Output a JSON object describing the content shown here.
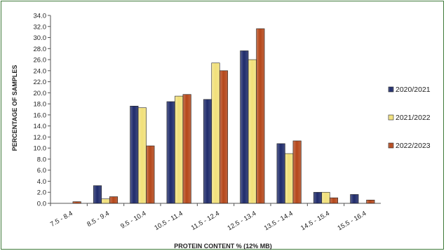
{
  "chart_data": {
    "type": "bar",
    "title": "",
    "xlabel": "PROTEIN CONTENT % (12% MB)",
    "ylabel": "PERCENTAGE OF SAMPLES",
    "ylim": [
      0,
      34
    ],
    "y_ticks": [
      "0.0",
      "2.0",
      "4.0",
      "6.0",
      "8.0",
      "10.0",
      "12.0",
      "14.0",
      "16.0",
      "18.0",
      "20.0",
      "22.0",
      "24.0",
      "26.0",
      "28.0",
      "30.0",
      "32.0",
      "34.0"
    ],
    "categories": [
      "7.5 - 8.4",
      "8.5 - 9.4",
      "9.5 - 10.4",
      "10.5 - 11.4",
      "11.5 - 12.4",
      "12.5 - 13.4",
      "13.5 - 14.4",
      "14.5 - 15.4",
      "15.5 - 16.4"
    ],
    "series": [
      {
        "name": "2020/2021",
        "color": "#1f2b6b",
        "values": [
          0.0,
          3.2,
          17.6,
          18.4,
          18.8,
          27.6,
          10.8,
          2.0,
          1.6
        ]
      },
      {
        "name": "2021/2022",
        "color": "#f1e07a",
        "values": [
          0.0,
          0.8,
          17.3,
          19.4,
          25.4,
          26.0,
          9.0,
          2.0,
          0.0
        ]
      },
      {
        "name": "2022/2023",
        "color": "#b5471a",
        "values": [
          0.3,
          1.2,
          10.4,
          19.7,
          24.0,
          31.6,
          11.3,
          1.0,
          0.6
        ]
      }
    ],
    "grid": false,
    "legend": "right"
  }
}
